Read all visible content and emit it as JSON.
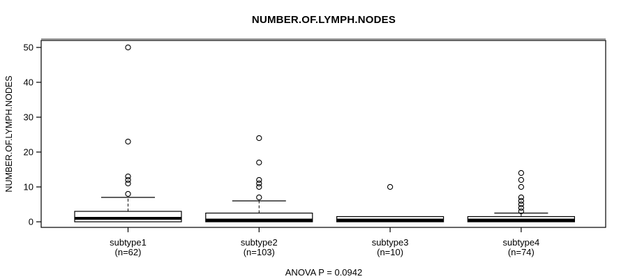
{
  "chart_data": {
    "type": "boxplot",
    "title": "NUMBER.OF.LYMPH.NODES",
    "ylabel": "NUMBER.OF.LYMPH.NODES",
    "xlabel": "",
    "annotation": "ANOVA P = 0.0942",
    "ylim": [
      0,
      50
    ],
    "yticks": [
      0,
      10,
      20,
      30,
      40,
      50
    ],
    "grid": false,
    "legend": "none",
    "groups": [
      {
        "label": "subtype1",
        "sublabel": "(n=62)",
        "n": 62,
        "q1": 0,
        "median": 1,
        "q3": 3,
        "whisker_low": 0,
        "whisker_high": 7,
        "outliers": [
          8,
          11,
          12,
          13,
          23,
          50
        ]
      },
      {
        "label": "subtype2",
        "sublabel": "(n=103)",
        "n": 103,
        "q1": 0,
        "median": 0.5,
        "q3": 2.5,
        "whisker_low": 0,
        "whisker_high": 6,
        "outliers": [
          7,
          10,
          11,
          12,
          17,
          24
        ]
      },
      {
        "label": "subtype3",
        "sublabel": "(n=10)",
        "n": 10,
        "q1": 0,
        "median": 0.5,
        "q3": 1.5,
        "whisker_low": 0,
        "whisker_high": 1.5,
        "outliers": [
          10
        ]
      },
      {
        "label": "subtype4",
        "sublabel": "(n=74)",
        "n": 74,
        "q1": 0,
        "median": 0.5,
        "q3": 1.5,
        "whisker_low": 0,
        "whisker_high": 2.5,
        "outliers": [
          3,
          4,
          5,
          6,
          7,
          10,
          12,
          14
        ]
      }
    ],
    "colors": {
      "stroke": "#000000",
      "box_fill": "#ffffff",
      "background": "#ffffff",
      "frame_top_accent": "#9a9a9a"
    }
  }
}
